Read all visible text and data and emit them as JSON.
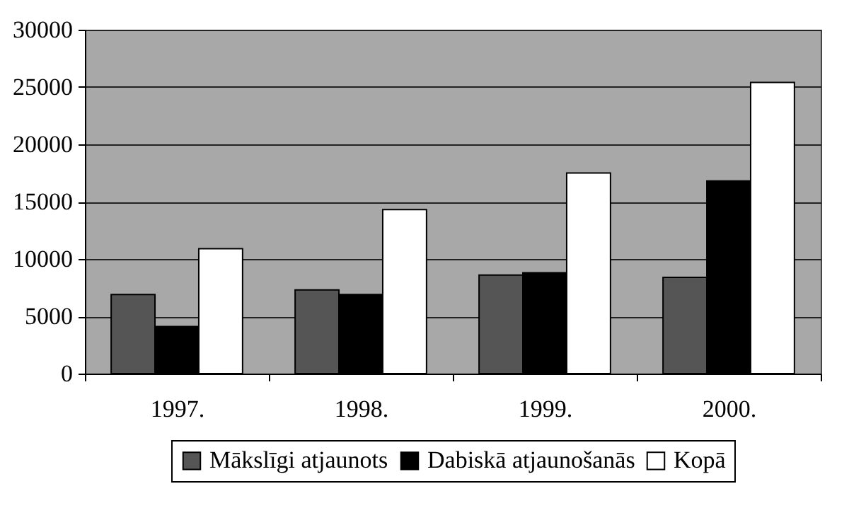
{
  "chart_data": {
    "type": "bar",
    "categories": [
      "1997.",
      "1998.",
      "1999.",
      "2000."
    ],
    "series": [
      {
        "name": "Mākslīgi atjaunots",
        "color": "#555555",
        "values": [
          6900,
          7300,
          8600,
          8400
        ]
      },
      {
        "name": "Dabiskā atjaunošanās",
        "color": "#000000",
        "values": [
          4100,
          6900,
          8800,
          16800
        ]
      },
      {
        "name": "Kopā",
        "color": "#ffffff",
        "values": [
          10900,
          14300,
          17500,
          25400
        ]
      }
    ],
    "ylim": [
      0,
      30000
    ],
    "yticks": [
      0,
      5000,
      10000,
      15000,
      20000,
      25000,
      30000
    ],
    "grid": "y",
    "legend": "bottom"
  }
}
